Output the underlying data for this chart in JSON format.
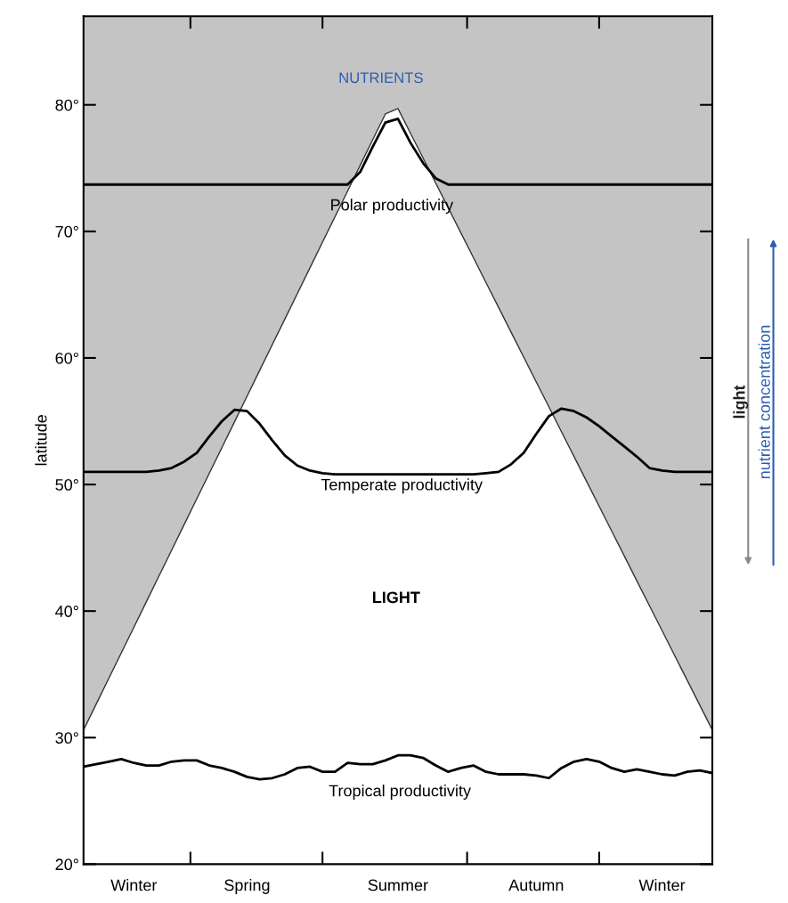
{
  "chart_data": {
    "type": "line",
    "ylabel": "latitude",
    "ylim": [
      20,
      87
    ],
    "categories": [
      null,
      null,
      null,
      null,
      "Winter",
      null,
      null,
      null,
      null,
      null,
      null,
      null,
      null,
      "Spring",
      null,
      null,
      null,
      null,
      null,
      null,
      null,
      null,
      null,
      null,
      null,
      "Summer",
      null,
      null,
      null,
      null,
      null,
      null,
      null,
      null,
      null,
      null,
      "Autumn",
      null,
      null,
      null,
      null,
      null,
      null,
      null,
      null,
      null,
      "Winter",
      null,
      null,
      null,
      null
    ],
    "yticks": [
      {
        "value": 20,
        "label": "20°"
      },
      {
        "value": 30,
        "label": "30°"
      },
      {
        "value": 40,
        "label": "40°"
      },
      {
        "value": 50,
        "label": "50°"
      },
      {
        "value": 60,
        "label": "60°"
      },
      {
        "value": 70,
        "label": "70°"
      },
      {
        "value": 80,
        "label": "80°"
      }
    ],
    "bands": [
      {
        "axis": "y",
        "from": 20,
        "to": 87,
        "color": "#c4c4c4"
      }
    ],
    "series": [
      {
        "type": "area",
        "color": "#ffffff",
        "values": [
          30.6,
          32.63,
          34.66,
          36.69,
          38.71,
          40.74,
          42.77,
          44.8,
          46.83,
          48.86,
          50.88,
          52.91,
          54.94,
          56.97,
          59.0,
          61.03,
          63.05,
          65.08,
          67.11,
          69.14,
          71.17,
          73.19,
          75.22,
          77.25,
          79.28,
          79.71,
          77.75,
          75.79,
          73.82,
          71.86,
          69.89,
          67.93,
          65.96,
          64.0,
          62.03,
          60.07,
          58.1,
          56.14,
          54.17,
          52.21,
          50.24,
          48.28,
          46.31,
          44.35,
          42.38,
          40.42,
          38.46,
          36.49,
          34.53,
          32.56,
          30.6
        ]
      },
      {
        "color": "#000000",
        "values": [
          73.7,
          73.7,
          73.7,
          73.7,
          73.7,
          73.7,
          73.7,
          73.7,
          73.7,
          73.7,
          73.7,
          73.7,
          73.7,
          73.7,
          73.7,
          73.7,
          73.7,
          73.7,
          73.7,
          73.7,
          73.7,
          73.7,
          74.7,
          76.7,
          78.6,
          78.9,
          77.0,
          75.4,
          74.2,
          73.7,
          73.7,
          73.7,
          73.7,
          73.7,
          73.7,
          73.7,
          73.7,
          73.7,
          73.7,
          73.7,
          73.7,
          73.7,
          73.7,
          73.7,
          73.7,
          73.7,
          73.7,
          73.7,
          73.7,
          73.7,
          73.7
        ]
      },
      {
        "color": "#000000",
        "values": [
          51.0,
          51.0,
          51.0,
          51.0,
          51.0,
          51.0,
          51.1,
          51.3,
          51.8,
          52.5,
          53.8,
          55.0,
          55.9,
          55.8,
          54.8,
          53.5,
          52.3,
          51.5,
          51.1,
          50.9,
          50.8,
          50.8,
          50.8,
          50.8,
          50.8,
          50.8,
          50.8,
          50.8,
          50.8,
          50.8,
          50.8,
          50.8,
          50.9,
          51.0,
          51.6,
          52.5,
          54.0,
          55.4,
          56.0,
          55.8,
          55.3,
          54.6,
          53.8,
          53.0,
          52.2,
          51.3,
          51.1,
          51.0,
          51.0,
          51.0,
          51.0
        ]
      },
      {
        "color": "#000000",
        "values": [
          27.7,
          27.9,
          28.1,
          28.3,
          28.0,
          27.8,
          27.8,
          28.1,
          28.2,
          28.2,
          27.8,
          27.6,
          27.3,
          26.9,
          26.7,
          26.8,
          27.1,
          27.6,
          27.7,
          27.3,
          27.3,
          28.0,
          27.9,
          27.9,
          28.2,
          28.6,
          28.6,
          28.4,
          27.8,
          27.3,
          27.6,
          27.8,
          27.3,
          27.1,
          27.1,
          27.1,
          27.0,
          26.8,
          27.6,
          28.1,
          28.3,
          28.1,
          27.6,
          27.3,
          27.5,
          27.3,
          27.1,
          27.0,
          27.3,
          27.4,
          27.2
        ]
      }
    ],
    "annotations": [
      "NUTRIENTS",
      "Polar productivity",
      "Temperate productivity",
      "LIGHT",
      "Tropical productivity",
      "light",
      "nutrient concentration"
    ]
  }
}
